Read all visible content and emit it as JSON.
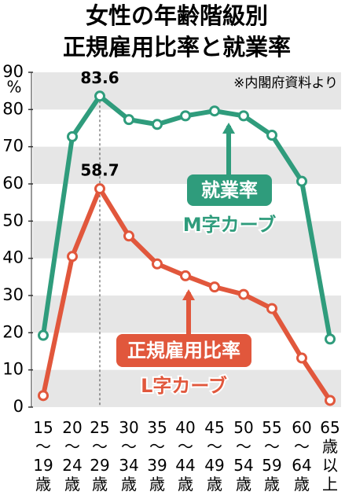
{
  "chart_data": {
    "type": "line",
    "title": "女性の年齢階級別",
    "subtitle": "正規雇用比率と就業率",
    "source": "※内閣府資料より",
    "y_unit": "%",
    "categories": [
      "15～19歳",
      "20～24歳",
      "25～29歳",
      "30～34歳",
      "35～39歳",
      "40～44歳",
      "45～49歳",
      "50～54歳",
      "55～59歳",
      "60～64歳",
      "65歳以上"
    ],
    "series": [
      {
        "name": "就業率",
        "curve_label": "M字カーブ",
        "color": "#2f9c7c",
        "values": [
          19.3,
          72.7,
          83.6,
          77.3,
          76.0,
          78.3,
          79.6,
          78.3,
          73.1,
          60.7,
          18.3
        ],
        "labeled_index": 2
      },
      {
        "name": "正規雇用比率",
        "curve_label": "L字カーブ",
        "color": "#e1573c",
        "values": [
          3.1,
          40.5,
          58.7,
          46.0,
          38.5,
          35.3,
          32.3,
          30.3,
          26.5,
          13.2,
          1.8
        ],
        "labeled_index": 2
      }
    ],
    "ylim": [
      0,
      90
    ],
    "yticks": [
      0,
      10,
      20,
      30,
      40,
      50,
      60,
      70,
      80,
      90
    ],
    "grid": "bands"
  }
}
